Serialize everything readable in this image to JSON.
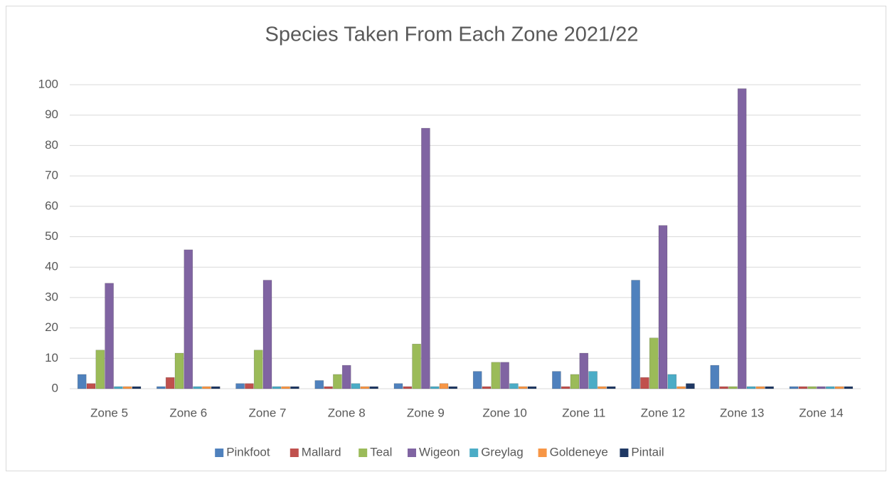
{
  "chart_data": {
    "type": "bar",
    "title": "Species Taken From Each Zone 2021/22",
    "categories": [
      "Zone 5",
      "Zone 6",
      "Zone 7",
      "Zone 8",
      "Zone 9",
      "Zone 10",
      "Zone 11",
      "Zone 12",
      "Zone 13",
      "Zone 14"
    ],
    "series": [
      {
        "name": "Pinkfoot",
        "color": "#4f81bd",
        "values": [
          4,
          0,
          1,
          2,
          1,
          5,
          5,
          35,
          7,
          0
        ]
      },
      {
        "name": "Mallard",
        "color": "#c0504d",
        "values": [
          1,
          3,
          1,
          0,
          0,
          0,
          0,
          3,
          0,
          0
        ]
      },
      {
        "name": "Teal",
        "color": "#9bbb59",
        "values": [
          12,
          11,
          12,
          4,
          14,
          8,
          4,
          16,
          0,
          0
        ]
      },
      {
        "name": "Wigeon",
        "color": "#8064a2",
        "values": [
          34,
          45,
          35,
          7,
          85,
          8,
          11,
          53,
          98,
          0
        ]
      },
      {
        "name": "Greylag",
        "color": "#4bacc6",
        "values": [
          0,
          0,
          0,
          1,
          0,
          1,
          5,
          4,
          0,
          0
        ]
      },
      {
        "name": "Goldeneye",
        "color": "#f79646",
        "values": [
          0,
          0,
          0,
          0,
          1,
          0,
          0,
          0,
          0,
          0
        ]
      },
      {
        "name": "Pintail",
        "color": "#1f3864",
        "values": [
          0,
          0,
          0,
          0,
          0,
          0,
          0,
          1,
          0,
          0
        ]
      }
    ],
    "ylim": [
      0,
      100
    ],
    "yticks": [
      0,
      10,
      20,
      30,
      40,
      50,
      60,
      70,
      80,
      90,
      100
    ],
    "grid": true,
    "legend": "bottom"
  }
}
